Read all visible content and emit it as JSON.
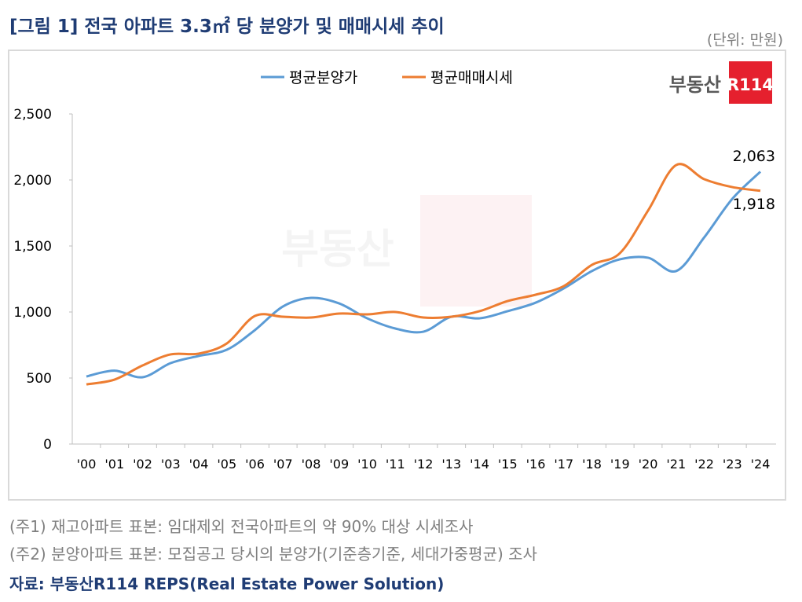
{
  "title": "[그림 1] 전국 아파트 3.3㎡ 당 분양가 및 매매시세 추이",
  "unit": "(단위: 만원)",
  "logo": {
    "text": "부동산",
    "badge": "R114",
    "color": "#e5202e"
  },
  "notes": [
    "(주1) 재고아파트 표본: 임대제외 전국아파트의 약 90% 대상 시세조사",
    "(주2) 분양아파트 표본: 모집공고 당시의 분양가(기준층기준, 세대가중평균) 조사"
  ],
  "source": "자료: 부동산R114 REPS(Real Estate Power Solution)",
  "chart_data": {
    "type": "line",
    "categories": [
      "'00",
      "'01",
      "'02",
      "'03",
      "'04",
      "'05",
      "'06",
      "'07",
      "'08",
      "'09",
      "'10",
      "'11",
      "'12",
      "'13",
      "'14",
      "'15",
      "'16",
      "'17",
      "'18",
      "'19",
      "'20",
      "'21",
      "'22",
      "'23",
      "'24"
    ],
    "ylim": [
      0,
      2500
    ],
    "yticks": [
      "0",
      "500",
      "1,000",
      "1,500",
      "2,000",
      "2,500"
    ],
    "legend": "top",
    "grid": false,
    "series": [
      {
        "name": "평균분양가",
        "color": "#5b9bd5",
        "values": [
          512,
          556,
          506,
          613,
          667,
          714,
          863,
          1042,
          1107,
          1065,
          952,
          875,
          851,
          964,
          952,
          1006,
          1071,
          1179,
          1310,
          1399,
          1411,
          1310,
          1565,
          1857,
          2063
        ]
      },
      {
        "name": "평균매매시세",
        "color": "#ed7d31",
        "values": [
          452,
          488,
          595,
          679,
          685,
          762,
          970,
          964,
          958,
          988,
          982,
          1000,
          958,
          964,
          1006,
          1083,
          1131,
          1196,
          1357,
          1446,
          1768,
          2113,
          2006,
          1946,
          1918
        ]
      }
    ],
    "annotations": [
      "2,063",
      "1,918"
    ]
  }
}
